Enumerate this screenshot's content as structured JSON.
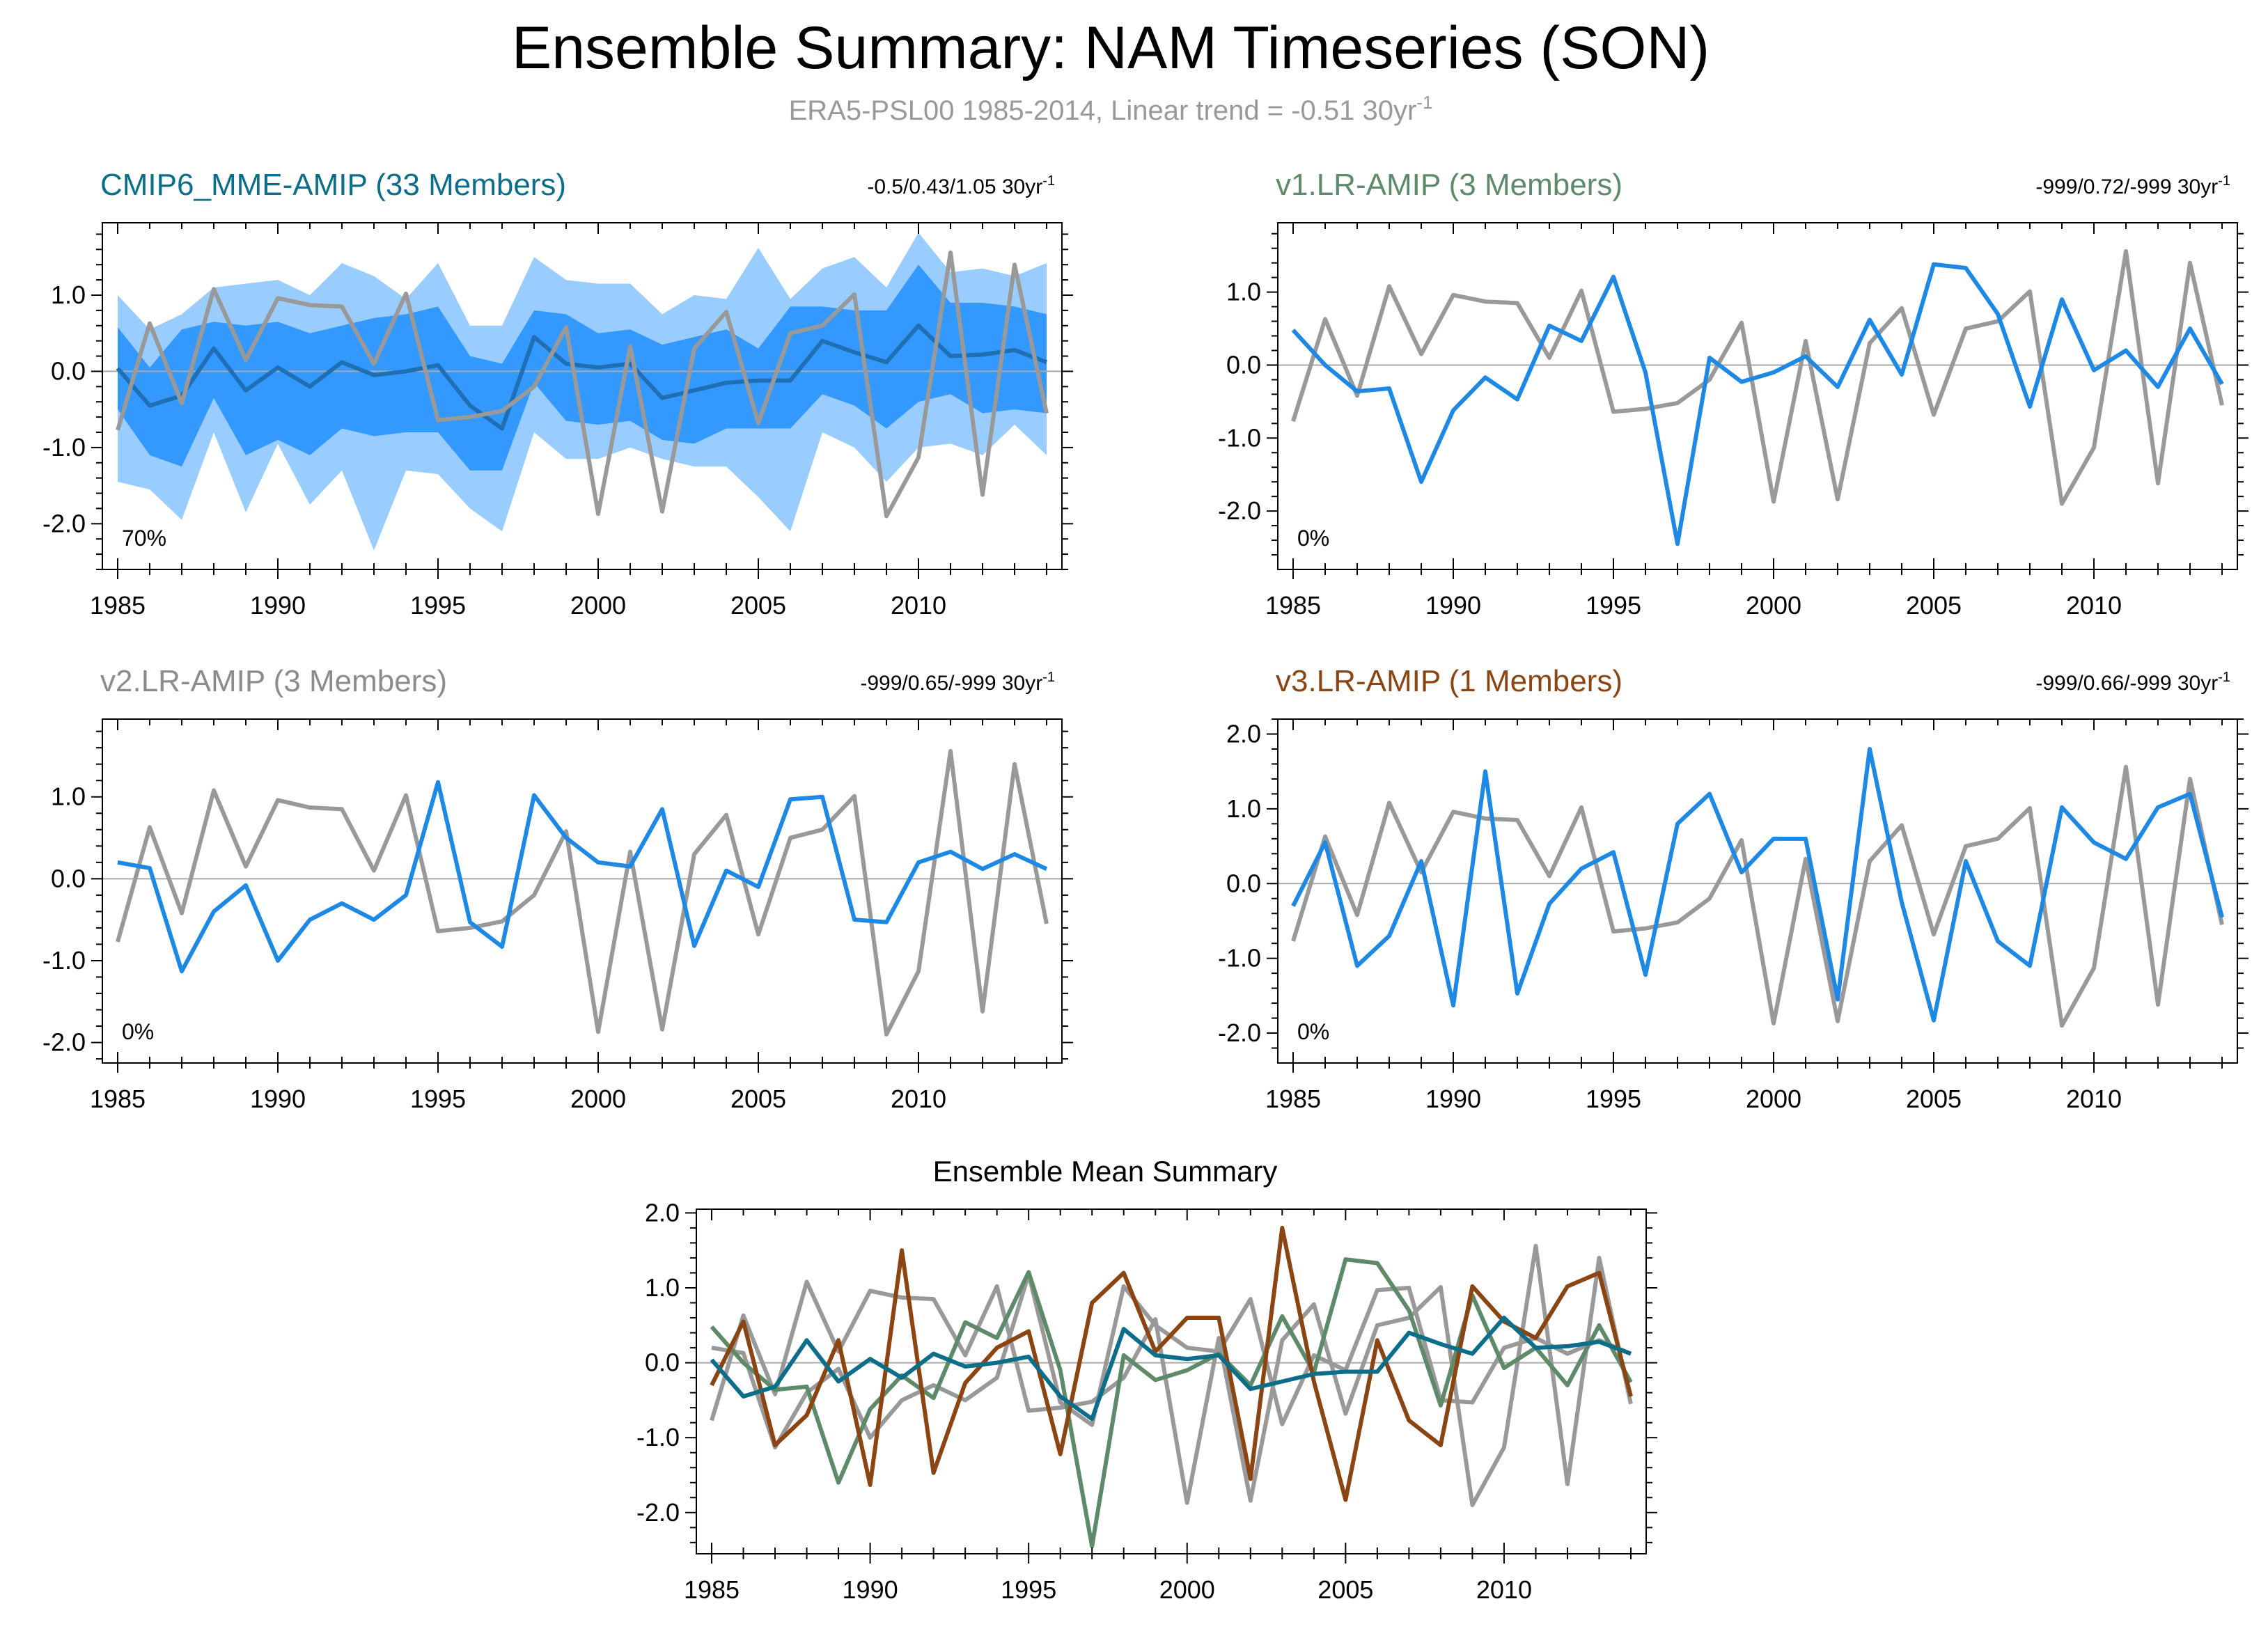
{
  "page": {
    "title": "Ensemble Summary: NAM Timeseries (SON)",
    "subtitle_base": "ERA5-PSL00 1985-2014, Linear trend = -0.51 30yr",
    "subtitle_sup": "-1"
  },
  "colors": {
    "obs": "#999999",
    "mme_mean": "#1f6fb5",
    "member": "#1e88e5",
    "band_outer": "#99ccff",
    "band_inner": "#3399ff",
    "mme_title": "#0d6e8a",
    "v1_title": "#5d8a68",
    "v2_title": "#8c8c8c",
    "v3_title": "#8b4513",
    "zero_line": "#aaaaaa"
  },
  "chart_data": [
    {
      "id": "mme",
      "type": "line",
      "title": "CMIP6_MME-AMIP (33 Members)",
      "stats": "-0.5/0.43/1.05 30yr",
      "stats_sup": "-1",
      "pct_label": "70%",
      "x": [
        1985,
        1986,
        1987,
        1988,
        1989,
        1990,
        1991,
        1992,
        1993,
        1994,
        1995,
        1996,
        1997,
        1998,
        1999,
        2000,
        2001,
        2002,
        2003,
        2004,
        2005,
        2006,
        2007,
        2008,
        2009,
        2010,
        2011,
        2012,
        2013,
        2014
      ],
      "xticks": [
        1985,
        1990,
        1995,
        2000,
        2005,
        2010
      ],
      "yticks": [
        -2.0,
        -1.0,
        0.0,
        1.0
      ],
      "ylim": [
        -2.6,
        1.95
      ],
      "obs": [
        -0.77,
        0.63,
        -0.42,
        1.08,
        0.15,
        0.96,
        0.87,
        0.85,
        0.1,
        1.02,
        -0.64,
        -0.6,
        -0.52,
        -0.2,
        0.58,
        -1.87,
        0.33,
        -1.84,
        0.3,
        0.78,
        -0.68,
        0.5,
        0.6,
        1.01,
        -1.9,
        -1.13,
        1.56,
        -1.62,
        1.4,
        -0.55
      ],
      "mean": [
        0.04,
        -0.45,
        -0.32,
        0.3,
        -0.25,
        0.05,
        -0.2,
        0.12,
        -0.05,
        0.0,
        0.08,
        -0.45,
        -0.75,
        0.45,
        0.1,
        0.05,
        0.1,
        -0.35,
        -0.25,
        -0.15,
        -0.12,
        -0.12,
        0.4,
        0.25,
        0.12,
        0.6,
        0.2,
        0.22,
        0.28,
        0.12
      ],
      "band_outer_lo": [
        -1.45,
        -1.55,
        -1.95,
        -0.8,
        -1.85,
        -0.95,
        -1.75,
        -1.3,
        -2.35,
        -1.3,
        -1.35,
        -1.8,
        -2.1,
        -0.8,
        -1.15,
        -1.15,
        -1.0,
        -1.15,
        -1.25,
        -1.25,
        -1.65,
        -2.1,
        -0.8,
        -1.0,
        -1.45,
        -1.0,
        -0.95,
        -1.1,
        -0.7,
        -1.1
      ],
      "band_inner_lo": [
        -0.5,
        -1.1,
        -1.25,
        -0.35,
        -1.1,
        -0.9,
        -1.1,
        -0.75,
        -0.85,
        -0.8,
        -0.8,
        -1.3,
        -1.3,
        -0.15,
        -0.65,
        -0.7,
        -0.65,
        -0.9,
        -0.95,
        -0.75,
        -0.75,
        -0.75,
        -0.3,
        -0.45,
        -0.75,
        -0.4,
        -0.3,
        -0.55,
        -0.5,
        -0.55
      ],
      "band_inner_hi": [
        0.58,
        0.05,
        0.55,
        0.65,
        0.6,
        0.65,
        0.5,
        0.6,
        0.7,
        0.75,
        0.85,
        0.2,
        0.1,
        0.8,
        0.75,
        0.5,
        0.55,
        0.35,
        0.45,
        0.55,
        0.3,
        0.85,
        0.85,
        0.8,
        0.8,
        1.4,
        0.9,
        0.9,
        0.85,
        0.75
      ],
      "band_outer_hi": [
        1.0,
        0.55,
        0.75,
        1.1,
        1.15,
        1.2,
        1.0,
        1.42,
        1.25,
        0.95,
        1.42,
        0.6,
        0.6,
        1.5,
        1.2,
        1.15,
        1.15,
        0.75,
        1.0,
        0.95,
        1.62,
        0.95,
        1.35,
        1.5,
        1.1,
        1.82,
        1.3,
        1.35,
        1.25,
        1.42
      ]
    },
    {
      "id": "v1",
      "type": "line",
      "title": "v1.LR-AMIP (3 Members)",
      "stats": "-999/0.72/-999 30yr",
      "stats_sup": "-1",
      "pct_label": "0%",
      "x": [
        1985,
        1986,
        1987,
        1988,
        1989,
        1990,
        1991,
        1992,
        1993,
        1994,
        1995,
        1996,
        1997,
        1998,
        1999,
        2000,
        2001,
        2002,
        2003,
        2004,
        2005,
        2006,
        2007,
        2008,
        2009,
        2010,
        2011,
        2012,
        2013,
        2014
      ],
      "xticks": [
        1985,
        1990,
        1995,
        2000,
        2005,
        2010
      ],
      "yticks": [
        -2.0,
        -1.0,
        0.0,
        1.0
      ],
      "ylim": [
        -2.8,
        1.95
      ],
      "obs": [
        -0.77,
        0.63,
        -0.42,
        1.08,
        0.15,
        0.96,
        0.87,
        0.85,
        0.1,
        1.02,
        -0.64,
        -0.6,
        -0.52,
        -0.2,
        0.58,
        -1.87,
        0.33,
        -1.84,
        0.3,
        0.78,
        -0.68,
        0.5,
        0.6,
        1.01,
        -1.9,
        -1.13,
        1.56,
        -1.62,
        1.4,
        -0.55
      ],
      "model": [
        0.48,
        0.0,
        -0.36,
        -0.32,
        -1.6,
        -0.62,
        -0.17,
        -0.47,
        0.54,
        0.33,
        1.21,
        -0.1,
        -2.45,
        0.1,
        -0.23,
        -0.1,
        0.12,
        -0.3,
        0.62,
        -0.13,
        1.38,
        1.33,
        0.7,
        -0.57,
        0.9,
        -0.07,
        0.2,
        -0.3,
        0.5,
        -0.26
      ]
    },
    {
      "id": "v2",
      "type": "line",
      "title": "v2.LR-AMIP (3 Members)",
      "stats": "-999/0.65/-999 30yr",
      "stats_sup": "-1",
      "pct_label": "0%",
      "x": [
        1985,
        1986,
        1987,
        1988,
        1989,
        1990,
        1991,
        1992,
        1993,
        1994,
        1995,
        1996,
        1997,
        1998,
        1999,
        2000,
        2001,
        2002,
        2003,
        2004,
        2005,
        2006,
        2007,
        2008,
        2009,
        2010,
        2011,
        2012,
        2013,
        2014
      ],
      "xticks": [
        1985,
        1990,
        1995,
        2000,
        2005,
        2010
      ],
      "yticks": [
        -2.0,
        -1.0,
        0.0,
        1.0
      ],
      "ylim": [
        -2.25,
        1.95
      ],
      "obs": [
        -0.77,
        0.63,
        -0.42,
        1.08,
        0.15,
        0.96,
        0.87,
        0.85,
        0.1,
        1.02,
        -0.64,
        -0.6,
        -0.52,
        -0.2,
        0.58,
        -1.87,
        0.33,
        -1.84,
        0.3,
        0.78,
        -0.68,
        0.5,
        0.6,
        1.01,
        -1.9,
        -1.13,
        1.56,
        -1.62,
        1.4,
        -0.55
      ],
      "model": [
        0.2,
        0.13,
        -1.13,
        -0.4,
        -0.08,
        -1.0,
        -0.5,
        -0.3,
        -0.5,
        -0.2,
        1.18,
        -0.53,
        -0.83,
        1.02,
        0.5,
        0.2,
        0.15,
        0.85,
        -0.82,
        0.1,
        -0.1,
        0.97,
        1.0,
        -0.5,
        -0.53,
        0.2,
        0.33,
        0.12,
        0.3,
        0.12
      ]
    },
    {
      "id": "v3",
      "type": "line",
      "title": "v3.LR-AMIP (1 Members)",
      "stats": "-999/0.66/-999 30yr",
      "stats_sup": "-1",
      "pct_label": "0%",
      "x": [
        1985,
        1986,
        1987,
        1988,
        1989,
        1990,
        1991,
        1992,
        1993,
        1994,
        1995,
        1996,
        1997,
        1998,
        1999,
        2000,
        2001,
        2002,
        2003,
        2004,
        2005,
        2006,
        2007,
        2008,
        2009,
        2010,
        2011,
        2012,
        2013,
        2014
      ],
      "xticks": [
        1985,
        1990,
        1995,
        2000,
        2005,
        2010
      ],
      "yticks": [
        -2.0,
        -1.0,
        0.0,
        1.0,
        2.0
      ],
      "ylim": [
        -2.4,
        2.2
      ],
      "obs": [
        -0.77,
        0.63,
        -0.42,
        1.08,
        0.15,
        0.96,
        0.87,
        0.85,
        0.1,
        1.02,
        -0.64,
        -0.6,
        -0.52,
        -0.2,
        0.58,
        -1.87,
        0.33,
        -1.84,
        0.3,
        0.78,
        -0.68,
        0.5,
        0.6,
        1.01,
        -1.9,
        -1.13,
        1.56,
        -1.62,
        1.4,
        -0.55
      ],
      "model": [
        -0.3,
        0.55,
        -1.1,
        -0.7,
        0.3,
        -1.63,
        1.5,
        -1.47,
        -0.27,
        0.2,
        0.42,
        -1.22,
        0.8,
        1.2,
        0.15,
        0.6,
        0.6,
        -1.55,
        1.8,
        -0.25,
        -1.83,
        0.3,
        -0.77,
        -1.1,
        1.02,
        0.55,
        0.33,
        1.02,
        1.2,
        -0.45
      ]
    },
    {
      "id": "summary",
      "type": "line",
      "title": "Ensemble Mean Summary",
      "x": [
        1985,
        1986,
        1987,
        1988,
        1989,
        1990,
        1991,
        1992,
        1993,
        1994,
        1995,
        1996,
        1997,
        1998,
        1999,
        2000,
        2001,
        2002,
        2003,
        2004,
        2005,
        2006,
        2007,
        2008,
        2009,
        2010,
        2011,
        2012,
        2013,
        2014
      ],
      "xticks": [
        1985,
        1990,
        1995,
        2000,
        2005,
        2010
      ],
      "yticks": [
        -2.0,
        -1.0,
        0.0,
        1.0,
        2.0
      ],
      "ylim": [
        -2.55,
        2.05
      ],
      "series": [
        {
          "name": "ERA5-PSL00",
          "color": "#999999",
          "values": [
            -0.77,
            0.63,
            -0.42,
            1.08,
            0.15,
            0.96,
            0.87,
            0.85,
            0.1,
            1.02,
            -0.64,
            -0.6,
            -0.52,
            -0.2,
            0.58,
            -1.87,
            0.33,
            -1.84,
            0.3,
            0.78,
            -0.68,
            0.5,
            0.6,
            1.01,
            -1.9,
            -1.13,
            1.56,
            -1.62,
            1.4,
            -0.55
          ]
        },
        {
          "name": "v2.LR-AMIP",
          "color": "#999999",
          "values": [
            0.2,
            0.13,
            -1.13,
            -0.4,
            -0.08,
            -1.0,
            -0.5,
            -0.3,
            -0.5,
            -0.2,
            1.18,
            -0.53,
            -0.83,
            1.02,
            0.5,
            0.2,
            0.15,
            0.85,
            -0.82,
            0.1,
            -0.1,
            0.97,
            1.0,
            -0.5,
            -0.53,
            0.2,
            0.33,
            0.12,
            0.3,
            0.12
          ]
        },
        {
          "name": "v1.LR-AMIP",
          "color": "#5d8a68",
          "values": [
            0.48,
            0.0,
            -0.36,
            -0.32,
            -1.6,
            -0.62,
            -0.17,
            -0.47,
            0.54,
            0.33,
            1.21,
            -0.1,
            -2.45,
            0.1,
            -0.23,
            -0.1,
            0.12,
            -0.3,
            0.62,
            -0.13,
            1.38,
            1.33,
            0.7,
            -0.57,
            0.9,
            -0.07,
            0.2,
            -0.3,
            0.5,
            -0.26
          ]
        },
        {
          "name": "v3.LR-AMIP",
          "color": "#8b4513",
          "values": [
            -0.3,
            0.55,
            -1.1,
            -0.7,
            0.3,
            -1.63,
            1.5,
            -1.47,
            -0.27,
            0.2,
            0.42,
            -1.22,
            0.8,
            1.2,
            0.15,
            0.6,
            0.6,
            -1.55,
            1.8,
            -0.25,
            -1.83,
            0.3,
            -0.77,
            -1.1,
            1.02,
            0.55,
            0.33,
            1.02,
            1.2,
            -0.45
          ]
        },
        {
          "name": "CMIP6_MME-AMIP",
          "color": "#0d6e8a",
          "values": [
            0.04,
            -0.45,
            -0.32,
            0.3,
            -0.25,
            0.05,
            -0.2,
            0.12,
            -0.05,
            0.0,
            0.08,
            -0.45,
            -0.75,
            0.45,
            0.1,
            0.05,
            0.1,
            -0.35,
            -0.25,
            -0.15,
            -0.12,
            -0.12,
            0.4,
            0.25,
            0.12,
            0.6,
            0.2,
            0.22,
            0.28,
            0.12
          ]
        }
      ]
    }
  ]
}
